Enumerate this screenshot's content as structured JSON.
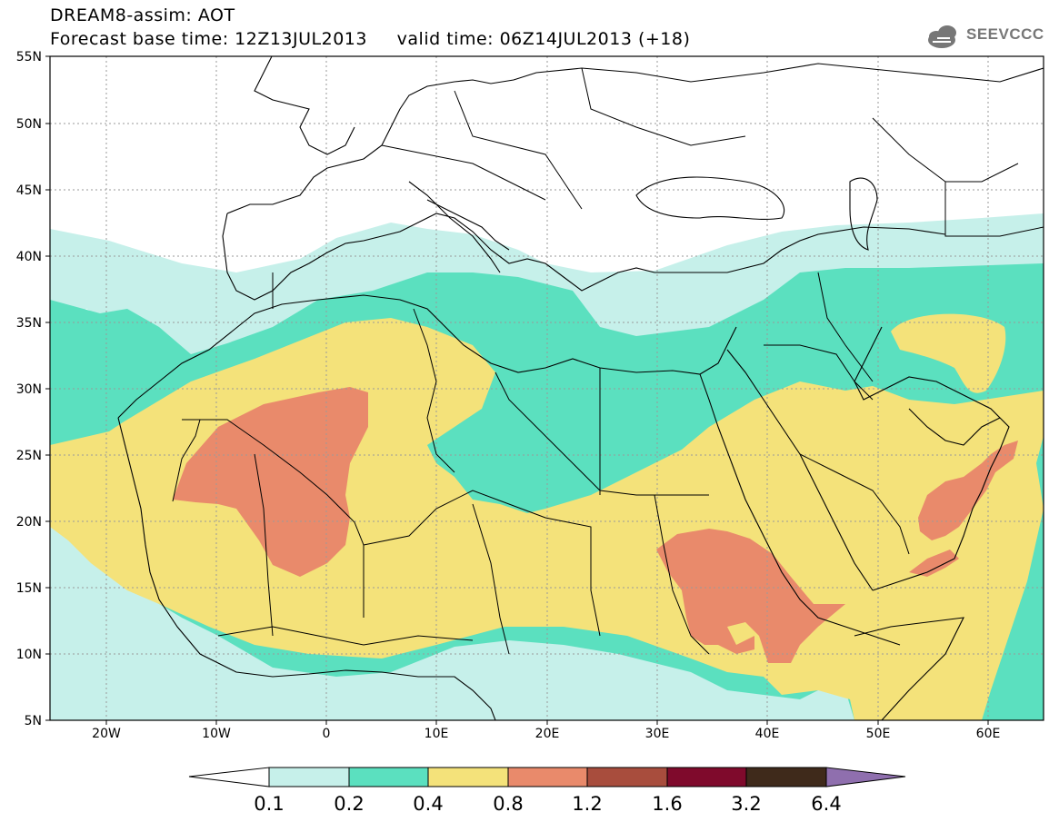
{
  "header": {
    "title": "DREAM8-assim: AOT",
    "forecast_base": "Forecast base time: 12Z13JUL2013",
    "valid_time": "valid time: 06Z14JUL2013 (+18)",
    "logo_text": "SEEVCCC",
    "logo_icon": "cloud-logo-icon"
  },
  "map": {
    "lat_labels": [
      "55N",
      "50N",
      "45N",
      "40N",
      "35N",
      "30N",
      "25N",
      "20N",
      "15N",
      "10N",
      "5N"
    ],
    "lon_labels": [
      "20W",
      "10W",
      "0",
      "10E",
      "20E",
      "30E",
      "40E",
      "50E",
      "60E"
    ],
    "lat_values": [
      55,
      50,
      45,
      40,
      35,
      30,
      25,
      20,
      15,
      10,
      5
    ],
    "lon_values": [
      -20,
      -10,
      0,
      10,
      20,
      30,
      40,
      50,
      60
    ],
    "lon_range": [
      -25,
      65
    ],
    "lat_range": [
      5,
      55
    ],
    "grid": true
  },
  "colorbar": {
    "levels": [
      "0.1",
      "0.2",
      "0.4",
      "0.8",
      "1.2",
      "1.6",
      "3.2",
      "6.4"
    ],
    "colors": [
      "#ffffff",
      "#c6f0ea",
      "#5be0bf",
      "#f4e27a",
      "#e98a6b",
      "#a84d3d",
      "#7f0a2c",
      "#3f2a1b",
      "#8f6fae"
    ]
  }
}
